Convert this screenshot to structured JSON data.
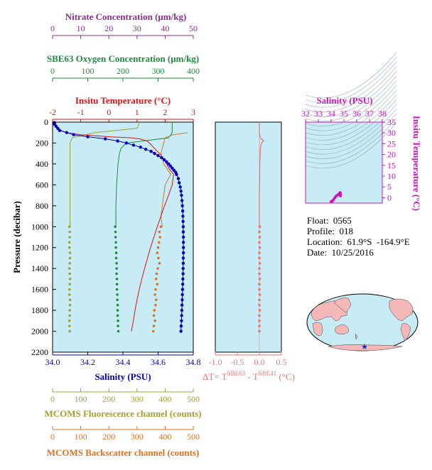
{
  "float_info": {
    "float": "Float:  0565",
    "profile": "Profile:  018",
    "location": "Location:  61.9°S  -164.9°E",
    "date": "Date:  10/25/2016"
  },
  "colors": {
    "panel_bg": "#c8ecf6",
    "nitrate": "#8b2f8b",
    "oxygen": "#1e8b3c",
    "temperature": "#e01010",
    "salinity": "#0000c0",
    "fluorescence": "#a0a030",
    "backscatter": "#e07020",
    "delta_t": "#f07070",
    "ts": "#d010c0"
  },
  "chart_data": [
    {
      "type": "line",
      "panel": "profile",
      "ylabel": "Pressure (decibar)",
      "ylim": [
        2200,
        0
      ],
      "yticks": [
        0,
        200,
        400,
        600,
        800,
        1000,
        1200,
        1400,
        1600,
        1800,
        2000,
        2200
      ],
      "grid": false,
      "axes": {
        "nitrate": {
          "label": "Nitrate Concentration (μm/kg)",
          "range": [
            0,
            50
          ],
          "ticks": [
            0,
            10,
            20,
            30,
            40,
            50
          ]
        },
        "oxygen": {
          "label": "SBE63 Oxygen Concentration (μm/kg)",
          "range": [
            0,
            400
          ],
          "ticks": [
            0,
            100,
            200,
            300,
            400
          ]
        },
        "temperature": {
          "label": "Insitu Temperature (°C)",
          "range": [
            -2,
            3
          ],
          "ticks": [
            -2,
            -1,
            0,
            1,
            2,
            3
          ]
        },
        "salinity": {
          "label": "Salinity (PSU)",
          "range": [
            34.0,
            34.8
          ],
          "ticks": [
            "34.0",
            "34.2",
            "34.4",
            "34.6",
            "34.8"
          ]
        },
        "fluorescence": {
          "label": "MCOMS Fluorescence channel (counts)",
          "range": [
            0,
            500
          ],
          "ticks": [
            0,
            100,
            200,
            300,
            400,
            500
          ]
        },
        "backscatter": {
          "label": "MCOMS Backscatter channel (counts)",
          "range": [
            0,
            500
          ],
          "ticks": [
            0,
            100,
            200,
            300,
            400,
            500
          ]
        }
      },
      "series": {
        "salinity": {
          "pressure": [
            5,
            20,
            40,
            60,
            80,
            100,
            120,
            140,
            160,
            180,
            200,
            220,
            240,
            260,
            280,
            300,
            320,
            340,
            360,
            380,
            400,
            420,
            440,
            460,
            480,
            500,
            540,
            580,
            620,
            660,
            700,
            750,
            800,
            850,
            900,
            950,
            1000,
            1050,
            1100,
            1150,
            1200,
            1250,
            1300,
            1350,
            1400,
            1450,
            1500,
            1550,
            1600,
            1650,
            1700,
            1750,
            1800,
            1850,
            1900,
            1950,
            2000
          ],
          "values": [
            34.01,
            34.01,
            34.02,
            34.03,
            34.04,
            34.08,
            34.12,
            34.2,
            34.3,
            34.37,
            34.42,
            34.46,
            34.5,
            34.53,
            34.56,
            34.58,
            34.6,
            34.62,
            34.635,
            34.648,
            34.66,
            34.67,
            34.68,
            34.69,
            34.7,
            34.705,
            34.715,
            34.72,
            34.726,
            34.73,
            34.733,
            34.736,
            34.738,
            34.74,
            34.741,
            34.742,
            34.743,
            34.743,
            34.744,
            34.744,
            34.744,
            34.744,
            34.743,
            34.743,
            34.742,
            34.742,
            34.741,
            34.74,
            34.739,
            34.738,
            34.737,
            34.736,
            34.735,
            34.734,
            34.733,
            34.731,
            34.73
          ]
        },
        "temperature": {
          "pressure": [
            0,
            50,
            80,
            100,
            120,
            140,
            150,
            160,
            180,
            200,
            230,
            260,
            300,
            350,
            400,
            450,
            500,
            600,
            700,
            800,
            900,
            1000,
            1100,
            1200,
            1300,
            1400,
            1500,
            1600,
            1700,
            1800,
            1900,
            2000
          ],
          "values": [
            -1.9,
            -1.85,
            -1.7,
            -1.5,
            -1.0,
            0.0,
            0.8,
            1.1,
            1.35,
            1.45,
            1.55,
            1.65,
            1.8,
            1.95,
            2.05,
            2.15,
            2.3,
            2.25,
            2.12,
            1.98,
            1.85,
            1.72,
            1.6,
            1.48,
            1.37,
            1.27,
            1.17,
            1.08,
            1.0,
            0.93,
            0.87,
            0.8
          ]
        },
        "oxygen": {
          "pressure": [
            0,
            100,
            150,
            200,
            250,
            300,
            400,
            500,
            600,
            700,
            800,
            900,
            1000
          ],
          "values": [
            340,
            340,
            330,
            210,
            195,
            190,
            186,
            184,
            182,
            181,
            180,
            180,
            180
          ]
        },
        "oxygen_points": {
          "pressure": [
            1000,
            1050,
            1100,
            1150,
            1200,
            1250,
            1300,
            1350,
            1400,
            1450,
            1500,
            1550,
            1600,
            1650,
            1700,
            1750,
            1800,
            1850,
            1900,
            1950,
            2000
          ],
          "values": [
            178,
            179,
            179,
            180,
            180,
            181,
            181,
            182,
            182,
            182,
            183,
            183,
            183,
            184,
            184,
            185,
            185,
            185,
            186,
            186,
            187
          ]
        },
        "fluorescence": {
          "pressure": [
            0,
            60,
            100,
            150,
            200,
            300,
            400,
            500,
            600,
            700,
            800,
            900,
            1000
          ],
          "values": [
            310,
            300,
            150,
            70,
            62,
            62,
            62,
            62,
            62,
            62,
            62,
            62,
            62
          ]
        },
        "fluorescence_points": {
          "pressure": [
            1000,
            1050,
            1100,
            1150,
            1200,
            1250,
            1300,
            1350,
            1400,
            1450,
            1500,
            1550,
            1600,
            1650,
            1700,
            1750,
            1800,
            1850,
            1900,
            1950,
            2000
          ],
          "values": [
            60,
            61,
            61,
            60,
            60,
            62,
            62,
            61,
            60,
            61,
            62,
            61,
            60,
            60,
            62,
            62,
            61,
            61,
            60,
            60,
            61
          ]
        },
        "backscatter": {
          "pressure": [
            100,
            120,
            150,
            200,
            250,
            300,
            400,
            500,
            600,
            700,
            800,
            900,
            1000
          ],
          "values": [
            480,
            430,
            400,
            395,
            390,
            385,
            395,
            420,
            400,
            395,
            390,
            385,
            390
          ]
        },
        "backscatter_points": {
          "pressure": [
            1000,
            1050,
            1100,
            1150,
            1200,
            1250,
            1300,
            1350,
            1400,
            1450,
            1500,
            1550,
            1600,
            1650,
            1700,
            1750,
            1800,
            1850,
            1900,
            1950,
            2000
          ],
          "values": [
            385,
            380,
            382,
            378,
            375,
            372,
            376,
            380,
            374,
            370,
            368,
            372,
            366,
            364,
            368,
            366,
            362,
            360,
            364,
            360,
            358
          ]
        }
      }
    },
    {
      "type": "line",
      "panel": "delta_t",
      "xlabel": "ΔT= T",
      "xlabel_sup1": "SBE63",
      "xlabel_mid": " - T",
      "xlabel_sup2": "SBE41",
      "xlabel_unit": " (°C)",
      "xlim": [
        -1.0,
        0.5
      ],
      "xticks": [
        "-1.0",
        "-0.5",
        "0.0",
        "0.5"
      ],
      "ylim": [
        2200,
        0
      ],
      "line": {
        "pressure": [
          0,
          100,
          150,
          180,
          200,
          230,
          260,
          300,
          400,
          500,
          700,
          1000
        ],
        "values": [
          0.0,
          0.0,
          0.02,
          0.1,
          0.05,
          0.03,
          0.02,
          0.02,
          0.01,
          0.01,
          0.0,
          0.0
        ]
      },
      "points": {
        "pressure": [
          1000,
          1050,
          1100,
          1150,
          1200,
          1250,
          1300,
          1350,
          1400,
          1450,
          1500,
          1550,
          1600,
          1650,
          1700,
          1750,
          1800,
          1850,
          1900,
          1950,
          2000
        ],
        "values": [
          0.01,
          0.0,
          0.01,
          0.0,
          0.01,
          0.0,
          0.0,
          0.01,
          0.0,
          0.0,
          0.01,
          0.0,
          0.0,
          0.01,
          0.0,
          0.0,
          0.01,
          0.0,
          0.0,
          0.0,
          0.0
        ]
      }
    },
    {
      "type": "scatter",
      "panel": "ts",
      "title": "Salinity (PSU)",
      "ylabel": "Insitu Temperature (°C)",
      "xlim": [
        32,
        38
      ],
      "xticks": [
        32,
        33,
        34,
        35,
        36,
        37,
        38
      ],
      "ylim": [
        -2.5,
        35
      ],
      "yticks": [
        0,
        5,
        10,
        15,
        20,
        25,
        30,
        35
      ],
      "points": {
        "salinity": [
          34.0,
          34.05,
          34.1,
          34.2,
          34.3,
          34.4,
          34.5,
          34.6,
          34.65,
          34.7,
          34.72,
          34.74,
          34.73
        ],
        "temperature": [
          -1.9,
          -1.8,
          -1.5,
          -0.8,
          0.0,
          0.8,
          1.2,
          1.6,
          2.0,
          2.3,
          2.2,
          1.8,
          0.8
        ]
      }
    }
  ]
}
